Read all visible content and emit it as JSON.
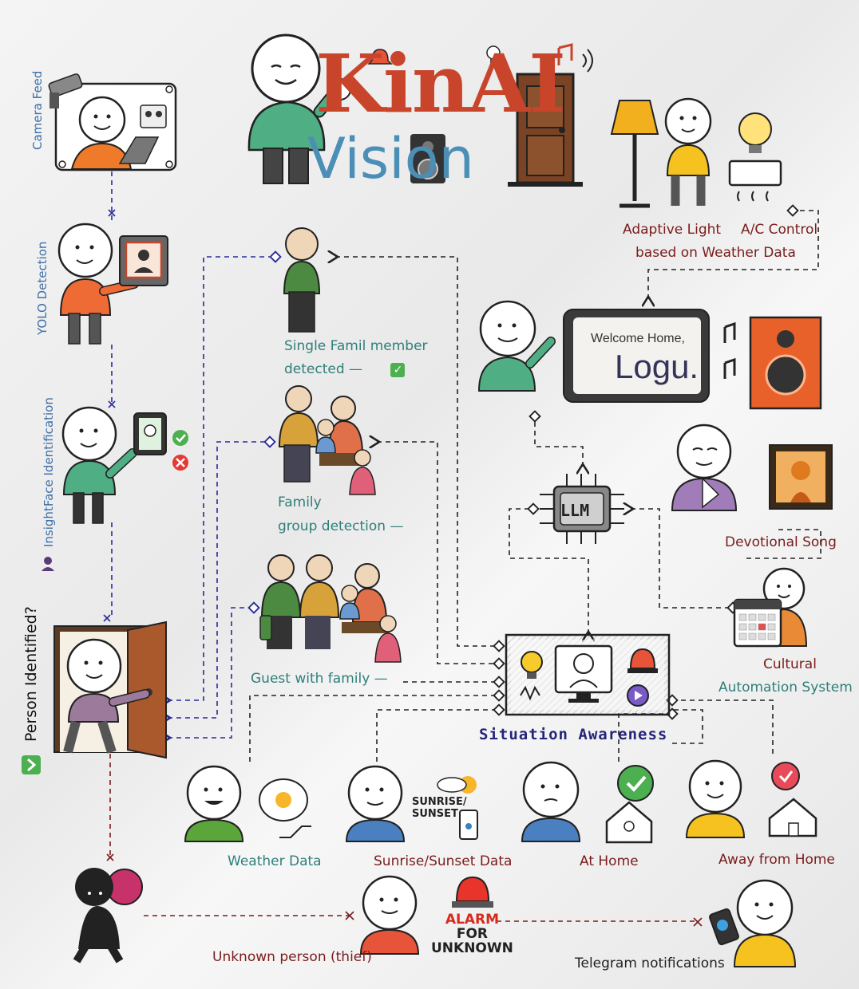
{
  "title": {
    "brand_kin": "KinAI",
    "brand_vision": "Vision",
    "colors": {
      "k": "#c8452b",
      "i": "#e08a2e",
      "n": "#3e8f50",
      "a": "#c8452b",
      "i2": "#3d7fbf"
    }
  },
  "pipeline": {
    "camera_feed": "Camera Feed",
    "yolo": "YOLO Detection",
    "insightface": "InsightFace Identification",
    "person_identified": "Person Identified?"
  },
  "scenarios": {
    "single_line1": "Single Famil member",
    "single_line2": "detected —",
    "family_line1": "Family",
    "family_line2": "group detection —",
    "guest": "Guest with family —"
  },
  "center": {
    "llm": "LLM",
    "situation_awareness": "Situation Awareness"
  },
  "display": {
    "welcome": "Welcome Home,",
    "name": "Logu."
  },
  "outputs": {
    "adaptive_line1": "Adaptive Light",
    "adaptive_line1b": "A/C Control",
    "adaptive_line2": "based on Weather Data",
    "devotional": "Devotional Song",
    "cultural_line1": "Cultural",
    "cultural_line2": "Automation System"
  },
  "inputs": {
    "weather": "Weather Data",
    "sunrise_icon_line1": "SUNRISE/",
    "sunrise_icon_line2": "SUNSET",
    "sunrise": "Sunrise/Sunset Data",
    "at_home": "At Home",
    "away": "Away from Home"
  },
  "alarm": {
    "unknown": "Unknown person (thief)",
    "alarm_line1": "ALARM",
    "alarm_line2": "FOR",
    "alarm_line3": "UNKNOWN",
    "telegram": "Telegram notifications"
  },
  "icons": [
    "camera-icon",
    "robot-icon",
    "face-scan-icon",
    "check-icon",
    "cross-icon",
    "door-icon",
    "lamp-icon",
    "bulb-icon",
    "ac-icon",
    "speaker-icon",
    "music-note-icon",
    "calendar-icon",
    "chip-icon",
    "alarm-siren-icon",
    "house-icon",
    "phone-icon",
    "sun-cloud-icon"
  ]
}
